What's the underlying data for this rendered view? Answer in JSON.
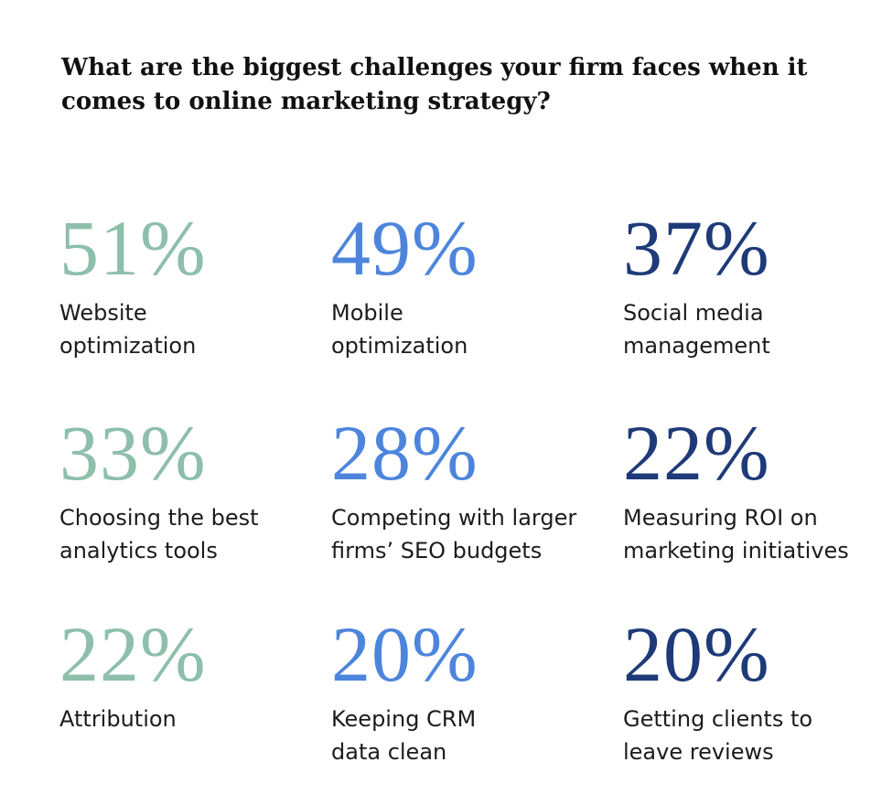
{
  "chart_data": {
    "type": "table",
    "title": "What are the biggest challenges your firm faces when it comes to online marketing strategy?",
    "colors": [
      "#8dbfab",
      "#4d85dd",
      "#1e3a78"
    ],
    "items": [
      {
        "value": "51%",
        "label": "Website\noptimization"
      },
      {
        "value": "49%",
        "label": "Mobile\noptimization"
      },
      {
        "value": "37%",
        "label": "Social media\nmanagement"
      },
      {
        "value": "33%",
        "label": "Choosing the best\nanalytics tools"
      },
      {
        "value": "28%",
        "label": "Competing with larger\nfirms’ SEO budgets"
      },
      {
        "value": "22%",
        "label": "Measuring ROI on\nmarketing initiatives"
      },
      {
        "value": "22%",
        "label": "Attribution"
      },
      {
        "value": "20%",
        "label": "Keeping CRM\ndata clean"
      },
      {
        "value": "20%",
        "label": "Getting clients to\nleave reviews"
      }
    ]
  }
}
